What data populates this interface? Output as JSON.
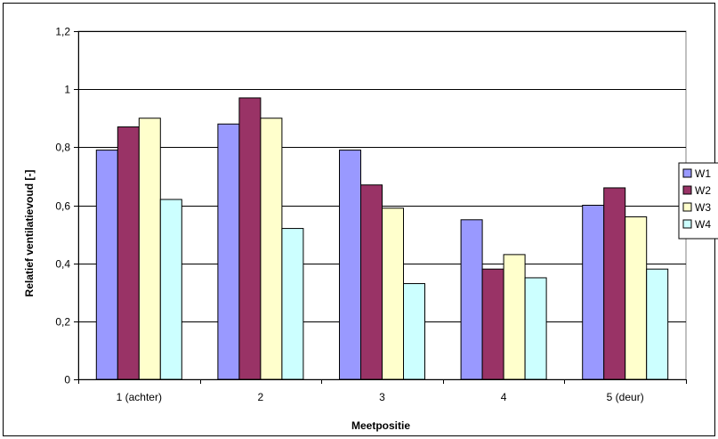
{
  "chart_data": {
    "type": "bar",
    "categories": [
      "1 (achter)",
      "2",
      "3",
      "4",
      "5 (deur)"
    ],
    "series": [
      {
        "name": "W1",
        "color": "#9999FF",
        "values": [
          0.79,
          0.88,
          0.79,
          0.55,
          0.6
        ]
      },
      {
        "name": "W2",
        "color": "#993366",
        "values": [
          0.87,
          0.97,
          0.67,
          0.38,
          0.66
        ]
      },
      {
        "name": "W3",
        "color": "#FFFFCC",
        "values": [
          0.9,
          0.9,
          0.59,
          0.43,
          0.56
        ]
      },
      {
        "name": "W4",
        "color": "#CCFFFF",
        "values": [
          0.62,
          0.52,
          0.33,
          0.35,
          0.38
        ]
      }
    ],
    "xlabel": "Meetpositie",
    "ylabel": "Relatief ventilatievoud [-]",
    "ylim": [
      0,
      1.2
    ],
    "yticks": [
      "0",
      "0,2",
      "0,4",
      "0,6",
      "0,8",
      "1",
      "1,2"
    ],
    "grid": true,
    "legend": "right",
    "plot_background": "#ffffff",
    "gridline_color": "#000000"
  }
}
